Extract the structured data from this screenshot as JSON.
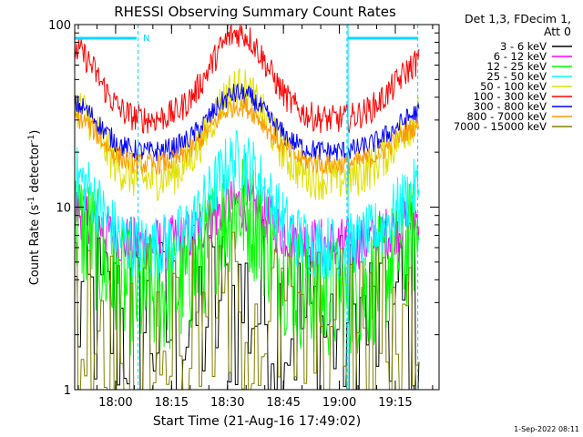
{
  "chart_data": {
    "type": "line",
    "title": "RHESSI Observing Summary Count Rates",
    "xlabel": "Start Time (21-Aug-16 17:49:02)",
    "ylabel_main": "Count Rate (s",
    "ylabel_sup1": "-1",
    "ylabel_mid": " detector",
    "ylabel_sup2": "-1",
    "ylabel_end": ")",
    "y_scale": "log",
    "ylim": [
      1,
      100
    ],
    "y_ticks": [
      {
        "value": 1,
        "label": "1"
      },
      {
        "value": 10,
        "label": "10"
      },
      {
        "value": 100,
        "label": "100"
      }
    ],
    "x_axis_unit": "minutes after 17:49:02",
    "xlim_minutes": [
      0,
      97.7
    ],
    "x_ticks": [
      {
        "label": "18:00",
        "minutes": 10.97
      },
      {
        "label": "18:15",
        "minutes": 25.97
      },
      {
        "label": "18:30",
        "minutes": 40.97
      },
      {
        "label": "18:45",
        "minutes": 55.97
      },
      {
        "label": "19:00",
        "minutes": 70.97
      },
      {
        "label": "19:15",
        "minutes": 85.97
      }
    ],
    "data_end_minutes": 92.3,
    "night_markers_minutes": [
      17.0,
      73.0,
      92.0
    ],
    "flag_bars": [
      {
        "start": 0,
        "end": 16.6,
        "label": "N"
      },
      {
        "start": 73.3,
        "end": 92.0,
        "label": ""
      }
    ],
    "legend_header": [
      "Det 1,3, FDecim 1,",
      "Att 0"
    ],
    "legend_placement": "outside-right",
    "series": [
      {
        "name": "3 - 6 keV",
        "color": "#000000",
        "base": 2.2,
        "peak": 3.0,
        "noise": 0.55,
        "style": "step"
      },
      {
        "name": "6 - 12 keV",
        "color": "#ff00ff",
        "base": 6.2,
        "peak": 10.5,
        "noise": 0.15,
        "style": "noisy"
      },
      {
        "name": "12 - 25 keV",
        "color": "#00ff00",
        "base": 3.2,
        "peak": 10.0,
        "noise": 0.35,
        "style": "noisy"
      },
      {
        "name": "25 - 50 keV",
        "color": "#00ffff",
        "base": 6.0,
        "peak": 18.0,
        "noise": 0.18,
        "style": "noisy"
      },
      {
        "name": "50 - 100 keV",
        "color": "#e0e000",
        "base": 14.0,
        "peak": 45.0,
        "noise": 0.12,
        "style": "noisy"
      },
      {
        "name": "100 - 300 keV",
        "color": "#ff0000",
        "base": 30.0,
        "peak": 90.0,
        "noise": 0.08,
        "style": "noisy"
      },
      {
        "name": "300 - 800 keV",
        "color": "#0000ff",
        "base": 20.0,
        "peak": 42.0,
        "noise": 0.06,
        "style": "noisy"
      },
      {
        "name": "800 - 7000 keV",
        "color": "#ff9900",
        "base": 17.0,
        "peak": 36.0,
        "noise": 0.06,
        "style": "noisy"
      },
      {
        "name": "7000 - 15000 keV",
        "color": "#808000",
        "base": 2.0,
        "peak": 2.6,
        "noise": 0.5,
        "style": "step"
      }
    ],
    "timestamp": "1-Sep-2022 08:11"
  }
}
